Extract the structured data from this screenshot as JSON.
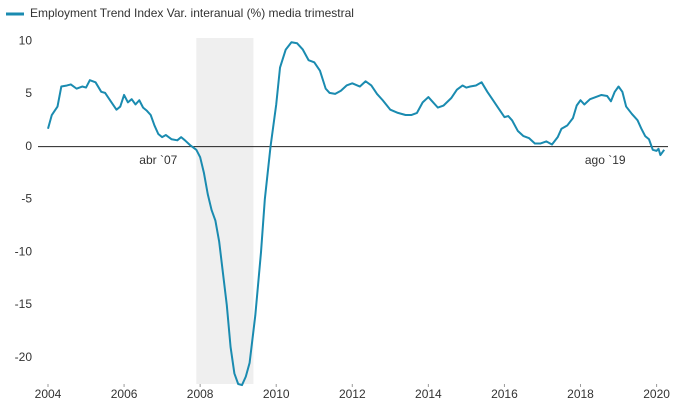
{
  "chart_data": {
    "type": "line",
    "series": [
      {
        "name": "Employment Trend Index Var. interanual (%) media trimestral",
        "color": "#1a8bb0",
        "values": [
          1.7,
          3.0,
          3.8,
          5.7,
          5.8,
          5.9,
          5.5,
          5.7,
          5.6,
          6.3,
          6.1,
          5.2,
          5.1,
          4.3,
          3.5,
          3.8,
          4.9,
          4.2,
          4.5,
          4.0,
          4.4,
          3.7,
          3.4,
          3.0,
          2.0,
          1.2,
          0.9,
          1.1,
          0.7,
          0.6,
          0.9,
          0.6,
          0.1,
          -0.3,
          -1.0,
          -2.5,
          -4.5,
          -6.0,
          -7.0,
          -9.0,
          -12,
          -15,
          -19,
          -21.5,
          -22.5,
          -22.6,
          -21.8,
          -20.5,
          -16,
          -10,
          -5,
          0,
          4,
          7.5,
          9.2,
          9.9,
          9.8,
          9.2,
          8.2,
          8.0,
          7.2,
          5.5,
          5.1,
          5.0,
          5.3,
          5.8,
          6.0,
          5.7,
          6.2,
          5.8,
          5.0,
          4.4,
          3.5,
          3.2,
          3.0,
          3.0,
          3.2,
          4.2,
          4.7,
          4.3,
          3.7,
          3.9,
          4.6,
          5.4,
          5.8,
          5.6,
          5.7,
          5.8,
          6.1,
          5.2,
          4.4,
          3.6,
          2.8,
          2.9,
          2.5,
          1.5,
          1.0,
          0.8,
          0.3,
          0.3,
          0.5,
          0.2,
          0.9,
          1.7,
          2.0,
          2.7,
          3.9,
          4.4,
          4.0,
          4.5,
          4.7,
          4.9,
          4.8,
          4.3,
          5.2,
          5.7,
          5.2,
          3.8,
          3.1,
          2.5,
          1.7,
          1.0,
          0.7,
          -0.3,
          -0.4,
          -0.2,
          -0.8,
          -0.3
        ]
      }
    ],
    "x": [
      2004.0,
      2004.1,
      2004.25,
      2004.35,
      2004.5,
      2004.6,
      2004.75,
      2004.9,
      2005.0,
      2005.1,
      2005.25,
      2005.4,
      2005.5,
      2005.65,
      2005.8,
      2005.9,
      2006.0,
      2006.1,
      2006.2,
      2006.3,
      2006.4,
      2006.5,
      2006.6,
      2006.7,
      2006.8,
      2006.9,
      2007.0,
      2007.1,
      2007.25,
      2007.4,
      2007.5,
      2007.6,
      2007.75,
      2007.9,
      2008.0,
      2008.1,
      2008.2,
      2008.3,
      2008.4,
      2008.5,
      2008.6,
      2008.7,
      2008.8,
      2008.9,
      2009.0,
      2009.1,
      2009.2,
      2009.3,
      2009.45,
      2009.6,
      2009.7,
      2009.85,
      2010.0,
      2010.1,
      2010.25,
      2010.4,
      2010.55,
      2010.7,
      2010.85,
      2011.0,
      2011.15,
      2011.3,
      2011.4,
      2011.55,
      2011.7,
      2011.85,
      2012.0,
      2012.2,
      2012.35,
      2012.5,
      2012.65,
      2012.8,
      2013.0,
      2013.2,
      2013.4,
      2013.55,
      2013.7,
      2013.85,
      2014.0,
      2014.1,
      2014.25,
      2014.4,
      2014.6,
      2014.75,
      2014.9,
      2015.0,
      2015.1,
      2015.25,
      2015.4,
      2015.55,
      2015.7,
      2015.85,
      2016.0,
      2016.1,
      2016.2,
      2016.35,
      2016.5,
      2016.65,
      2016.8,
      2016.95,
      2017.1,
      2017.25,
      2017.4,
      2017.5,
      2017.65,
      2017.8,
      2017.9,
      2018.0,
      2018.1,
      2018.25,
      2018.4,
      2018.55,
      2018.7,
      2018.8,
      2018.9,
      2019.0,
      2019.1,
      2019.2,
      2019.35,
      2019.5,
      2019.6,
      2019.7,
      2019.8,
      2019.9,
      2020.0,
      2020.05,
      2020.1,
      2020.2
    ],
    "xlim": [
      2004,
      2020.3
    ],
    "xticks": [
      2004,
      2006,
      2008,
      2010,
      2012,
      2014,
      2016,
      2018,
      2020
    ],
    "ylim": [
      -22.5,
      10.3
    ],
    "yticks": [
      10,
      5,
      0,
      -5,
      -10,
      -15,
      -20
    ],
    "shaded_x": [
      2007.9,
      2009.4
    ],
    "shaded_color": "#efefef",
    "annotations": [
      {
        "text": "abr `07",
        "x": 2006.9
      },
      {
        "text": "ago `19",
        "x": 2018.65
      }
    ],
    "legend": "top-left",
    "grid": false
  }
}
